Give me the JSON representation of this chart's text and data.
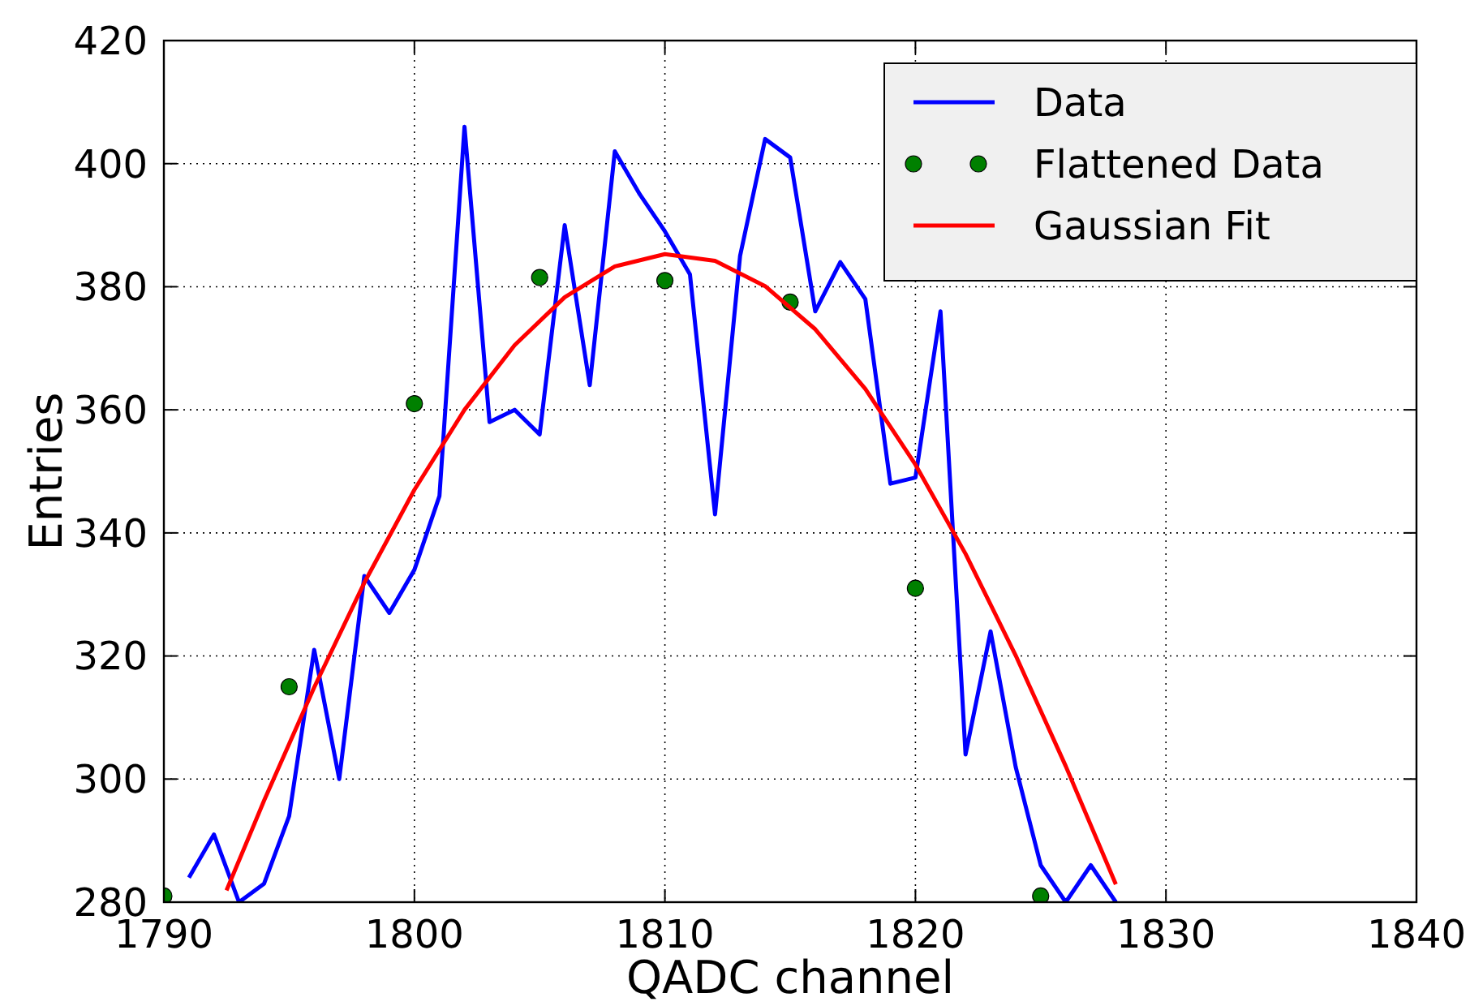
{
  "chart_data": {
    "type": "line",
    "xlabel": "QADC channel",
    "ylabel": "Entries",
    "xlim": [
      1790,
      1840
    ],
    "xticks": [
      1790,
      1800,
      1810,
      1820,
      1830,
      1840
    ],
    "ylim": [
      280,
      420
    ],
    "yticks": [
      280,
      300,
      320,
      340,
      360,
      380,
      400,
      420
    ],
    "grid": true,
    "legend": "top right",
    "series": [
      {
        "name": "Data",
        "color": "#0000ff",
        "x": [
          1791,
          1792,
          1793,
          1794,
          1795,
          1796,
          1797,
          1798,
          1799,
          1800,
          1801,
          1802,
          1803,
          1804,
          1805,
          1806,
          1807,
          1808,
          1809,
          1810,
          1811,
          1812,
          1813,
          1814,
          1815,
          1816,
          1817,
          1818,
          1819,
          1820,
          1821,
          1822,
          1823,
          1824,
          1825,
          1826,
          1827,
          1828
        ],
        "values": [
          284,
          291,
          280,
          283,
          294,
          321,
          300,
          333,
          327,
          334,
          346,
          406,
          358,
          360,
          356,
          390,
          364,
          402,
          395,
          389,
          382,
          343,
          385,
          404,
          401,
          376,
          384,
          378,
          348,
          349,
          376,
          304,
          324,
          302,
          286,
          280,
          286,
          280
        ]
      },
      {
        "name": "Flattened Data",
        "type": "scatter",
        "color": "#008000",
        "marker": "circle",
        "x": [
          1790,
          1795,
          1800,
          1805,
          1810,
          1815,
          1820,
          1825
        ],
        "values": [
          281,
          315,
          361,
          381.5,
          381,
          377.5,
          331,
          281
        ]
      },
      {
        "name": "Gaussian Fit",
        "color": "#ff0000",
        "x": [
          1792.5,
          1794,
          1796,
          1798,
          1800,
          1802,
          1804,
          1806,
          1808,
          1810,
          1812,
          1814,
          1816,
          1818,
          1820,
          1822,
          1824,
          1826,
          1828
        ],
        "values": [
          281.9,
          296.5,
          314.9,
          331.9,
          347,
          360,
          370.5,
          378.3,
          383.3,
          385.3,
          384.2,
          380.1,
          373.1,
          363.4,
          351.1,
          336.6,
          320.1,
          302.1,
          282.9
        ]
      }
    ]
  }
}
